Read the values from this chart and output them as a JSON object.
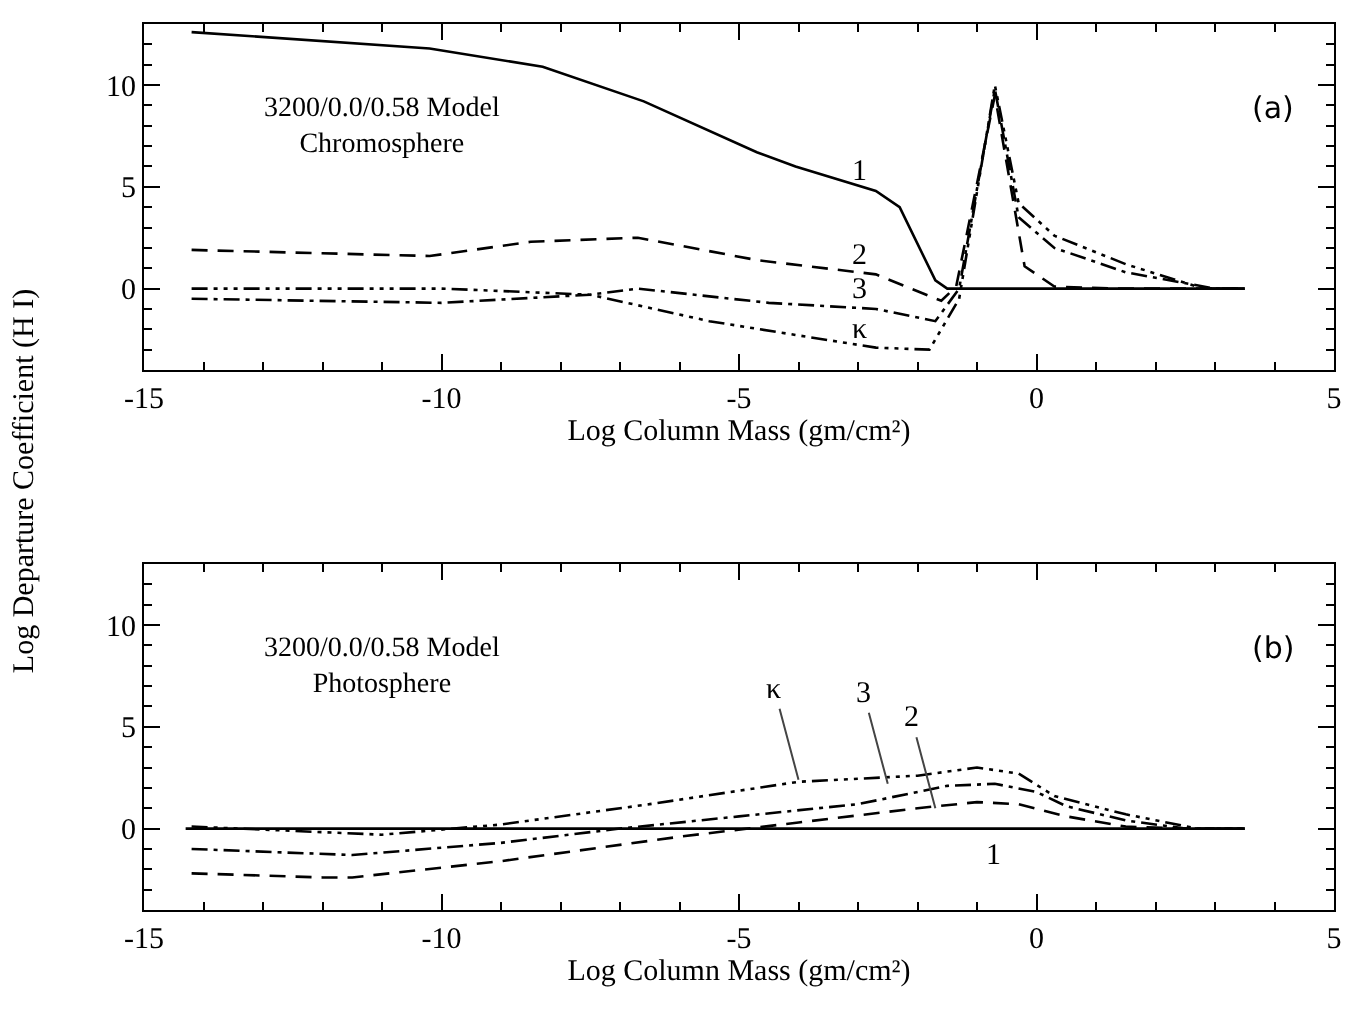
{
  "chart_data": [
    {
      "type": "line",
      "xlabel": "Log Column Mass (gm/cm²)",
      "ylabel": "Log Departure Coefficient (H I)",
      "xlim": [
        -15,
        5
      ],
      "xticks": [
        -15,
        -10,
        -5,
        0,
        5
      ],
      "ylim": [
        -4,
        13
      ],
      "yticks": [
        0,
        5,
        10
      ],
      "grid": false,
      "marker": "none",
      "annotations": [
        "3200/0.0/0.58 Model\nChromosphere",
        "(a)",
        {
          "text": "1",
          "x": -2.7,
          "y": 4.8
        },
        {
          "text": "2",
          "x": -2.7,
          "y": 0.7
        },
        {
          "text": "3",
          "x": -2.7,
          "y": -1.0
        },
        {
          "text": "κ",
          "x": -2.7,
          "y": -2.9
        }
      ],
      "series": [
        {
          "color": "#000000",
          "line_style": "solid",
          "x": [
            -14.2,
            -10.2,
            -8.3,
            -6.6,
            -4.7,
            -4.05,
            -2.7,
            -2.3,
            -1.7,
            -1.5,
            0,
            3.5
          ],
          "values": [
            12.6,
            11.8,
            10.9,
            9.2,
            6.7,
            6.0,
            4.8,
            4.0,
            0.4,
            0,
            0,
            0
          ]
        },
        {
          "color": "#000000",
          "line_style": "dashed",
          "x": [
            -14.2,
            -10.2,
            -8.5,
            -6.7,
            -4.7,
            -2.7,
            -1.6,
            -1.35,
            -0.7,
            -0.2,
            0.3,
            1.3,
            3.5
          ],
          "values": [
            1.9,
            1.6,
            2.3,
            2.5,
            1.4,
            0.7,
            -0.6,
            0.1,
            9.5,
            1.1,
            0.1,
            0,
            0
          ]
        },
        {
          "color": "#000000",
          "line_style": "dashdot",
          "x": [
            -14.2,
            -10,
            -7.5,
            -6.7,
            -4.5,
            -2.7,
            -1.7,
            -1.3,
            -0.7,
            -0.3,
            0.3,
            1.5,
            3,
            3.5
          ],
          "values": [
            -0.5,
            -0.7,
            -0.3,
            0,
            -0.7,
            -1.0,
            -1.6,
            0,
            9.8,
            3.5,
            2.0,
            0.8,
            0,
            0
          ]
        },
        {
          "color": "#000000",
          "line_style": "dashdotdot",
          "x": [
            -14.2,
            -10,
            -7.5,
            -5.5,
            -4,
            -2.7,
            -1.8,
            -1.3,
            -0.7,
            -0.3,
            0.3,
            1.5,
            2.8,
            3.5
          ],
          "values": [
            0,
            0,
            -0.3,
            -1.6,
            -2.3,
            -2.9,
            -3.0,
            -0.5,
            10,
            4.2,
            2.6,
            1.2,
            0,
            0
          ]
        }
      ]
    },
    {
      "type": "line",
      "xlabel": "Log Column Mass (gm/cm²)",
      "xlim": [
        -15,
        5
      ],
      "xticks": [
        -15,
        -10,
        -5,
        0,
        5
      ],
      "ylim": [
        -4,
        13
      ],
      "yticks": [
        0,
        5,
        10
      ],
      "grid": false,
      "marker": "none",
      "annotations": [
        "3200/0.0/0.58 Model\nPhotosphere",
        "(b)",
        {
          "text": "κ",
          "x": -4,
          "y": 2.4
        },
        {
          "text": "3",
          "x": -2.5,
          "y": 2.2
        },
        {
          "text": "2",
          "x": -1.7,
          "y": 1.0
        },
        {
          "text": "1",
          "x": -0.7,
          "y": 0
        }
      ],
      "series": [
        {
          "color": "#000000",
          "line_style": "solid",
          "x": [
            -14.3,
            3.5
          ],
          "values": [
            0,
            0
          ]
        },
        {
          "color": "#000000",
          "line_style": "dashed",
          "x": [
            -14.2,
            -12,
            -11.5,
            -9,
            -6,
            -4,
            -2,
            -1,
            -0.3,
            0.5,
            1.5,
            2.5,
            3.5
          ],
          "values": [
            -2.2,
            -2.4,
            -2.4,
            -1.6,
            -0.4,
            0.3,
            1.0,
            1.3,
            1.2,
            0.6,
            0.1,
            0,
            0
          ]
        },
        {
          "color": "#000000",
          "line_style": "dashdot",
          "x": [
            -14.2,
            -11.5,
            -9,
            -7,
            -5,
            -3,
            -1.5,
            -0.7,
            0,
            0.5,
            1.5,
            2.5,
            3.5
          ],
          "values": [
            -1.0,
            -1.3,
            -0.7,
            0,
            0.6,
            1.2,
            2.1,
            2.2,
            1.8,
            1.1,
            0.4,
            0,
            0
          ]
        },
        {
          "color": "#000000",
          "line_style": "dashdotdot",
          "x": [
            -14.2,
            -11,
            -9,
            -6.5,
            -4,
            -2,
            -1,
            -0.3,
            0.3,
            1.5,
            2.7,
            3.5
          ],
          "values": [
            0.1,
            -0.3,
            0.2,
            1.2,
            2.3,
            2.6,
            3.0,
            2.7,
            1.6,
            0.7,
            0,
            0
          ]
        }
      ]
    }
  ]
}
